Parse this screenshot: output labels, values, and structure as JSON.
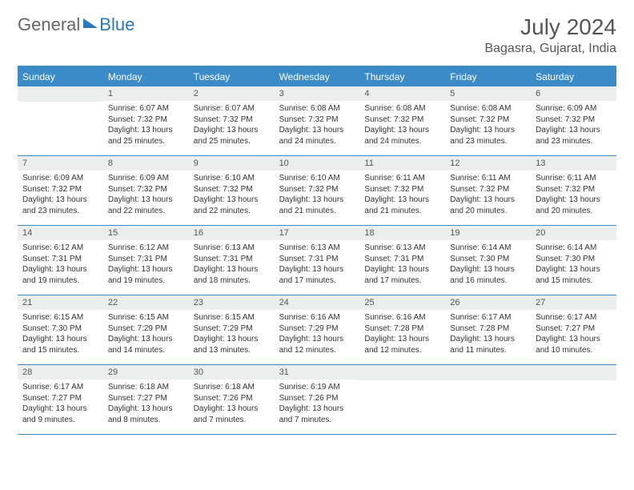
{
  "logo": {
    "part1": "General",
    "part2": "Blue"
  },
  "title": "July 2024",
  "location": "Bagasra, Gujarat, India",
  "colors": {
    "header_bg": "#3b8bc9",
    "header_text": "#ffffff",
    "date_bg": "#eceeee",
    "border": "#3b8bc9",
    "text": "#333333",
    "title_text": "#555555"
  },
  "day_names": [
    "Sunday",
    "Monday",
    "Tuesday",
    "Wednesday",
    "Thursday",
    "Friday",
    "Saturday"
  ],
  "weeks": [
    [
      null,
      {
        "d": "1",
        "sr": "6:07 AM",
        "ss": "7:32 PM",
        "dl": "13 hours and 25 minutes."
      },
      {
        "d": "2",
        "sr": "6:07 AM",
        "ss": "7:32 PM",
        "dl": "13 hours and 25 minutes."
      },
      {
        "d": "3",
        "sr": "6:08 AM",
        "ss": "7:32 PM",
        "dl": "13 hours and 24 minutes."
      },
      {
        "d": "4",
        "sr": "6:08 AM",
        "ss": "7:32 PM",
        "dl": "13 hours and 24 minutes."
      },
      {
        "d": "5",
        "sr": "6:08 AM",
        "ss": "7:32 PM",
        "dl": "13 hours and 23 minutes."
      },
      {
        "d": "6",
        "sr": "6:09 AM",
        "ss": "7:32 PM",
        "dl": "13 hours and 23 minutes."
      }
    ],
    [
      {
        "d": "7",
        "sr": "6:09 AM",
        "ss": "7:32 PM",
        "dl": "13 hours and 23 minutes."
      },
      {
        "d": "8",
        "sr": "6:09 AM",
        "ss": "7:32 PM",
        "dl": "13 hours and 22 minutes."
      },
      {
        "d": "9",
        "sr": "6:10 AM",
        "ss": "7:32 PM",
        "dl": "13 hours and 22 minutes."
      },
      {
        "d": "10",
        "sr": "6:10 AM",
        "ss": "7:32 PM",
        "dl": "13 hours and 21 minutes."
      },
      {
        "d": "11",
        "sr": "6:11 AM",
        "ss": "7:32 PM",
        "dl": "13 hours and 21 minutes."
      },
      {
        "d": "12",
        "sr": "6:11 AM",
        "ss": "7:32 PM",
        "dl": "13 hours and 20 minutes."
      },
      {
        "d": "13",
        "sr": "6:11 AM",
        "ss": "7:32 PM",
        "dl": "13 hours and 20 minutes."
      }
    ],
    [
      {
        "d": "14",
        "sr": "6:12 AM",
        "ss": "7:31 PM",
        "dl": "13 hours and 19 minutes."
      },
      {
        "d": "15",
        "sr": "6:12 AM",
        "ss": "7:31 PM",
        "dl": "13 hours and 19 minutes."
      },
      {
        "d": "16",
        "sr": "6:13 AM",
        "ss": "7:31 PM",
        "dl": "13 hours and 18 minutes."
      },
      {
        "d": "17",
        "sr": "6:13 AM",
        "ss": "7:31 PM",
        "dl": "13 hours and 17 minutes."
      },
      {
        "d": "18",
        "sr": "6:13 AM",
        "ss": "7:31 PM",
        "dl": "13 hours and 17 minutes."
      },
      {
        "d": "19",
        "sr": "6:14 AM",
        "ss": "7:30 PM",
        "dl": "13 hours and 16 minutes."
      },
      {
        "d": "20",
        "sr": "6:14 AM",
        "ss": "7:30 PM",
        "dl": "13 hours and 15 minutes."
      }
    ],
    [
      {
        "d": "21",
        "sr": "6:15 AM",
        "ss": "7:30 PM",
        "dl": "13 hours and 15 minutes."
      },
      {
        "d": "22",
        "sr": "6:15 AM",
        "ss": "7:29 PM",
        "dl": "13 hours and 14 minutes."
      },
      {
        "d": "23",
        "sr": "6:15 AM",
        "ss": "7:29 PM",
        "dl": "13 hours and 13 minutes."
      },
      {
        "d": "24",
        "sr": "6:16 AM",
        "ss": "7:29 PM",
        "dl": "13 hours and 12 minutes."
      },
      {
        "d": "25",
        "sr": "6:16 AM",
        "ss": "7:28 PM",
        "dl": "13 hours and 12 minutes."
      },
      {
        "d": "26",
        "sr": "6:17 AM",
        "ss": "7:28 PM",
        "dl": "13 hours and 11 minutes."
      },
      {
        "d": "27",
        "sr": "6:17 AM",
        "ss": "7:27 PM",
        "dl": "13 hours and 10 minutes."
      }
    ],
    [
      {
        "d": "28",
        "sr": "6:17 AM",
        "ss": "7:27 PM",
        "dl": "13 hours and 9 minutes."
      },
      {
        "d": "29",
        "sr": "6:18 AM",
        "ss": "7:27 PM",
        "dl": "13 hours and 8 minutes."
      },
      {
        "d": "30",
        "sr": "6:18 AM",
        "ss": "7:26 PM",
        "dl": "13 hours and 7 minutes."
      },
      {
        "d": "31",
        "sr": "6:19 AM",
        "ss": "7:26 PM",
        "dl": "13 hours and 7 minutes."
      },
      null,
      null,
      null
    ]
  ],
  "labels": {
    "sunrise": "Sunrise:",
    "sunset": "Sunset:",
    "daylight": "Daylight:"
  }
}
